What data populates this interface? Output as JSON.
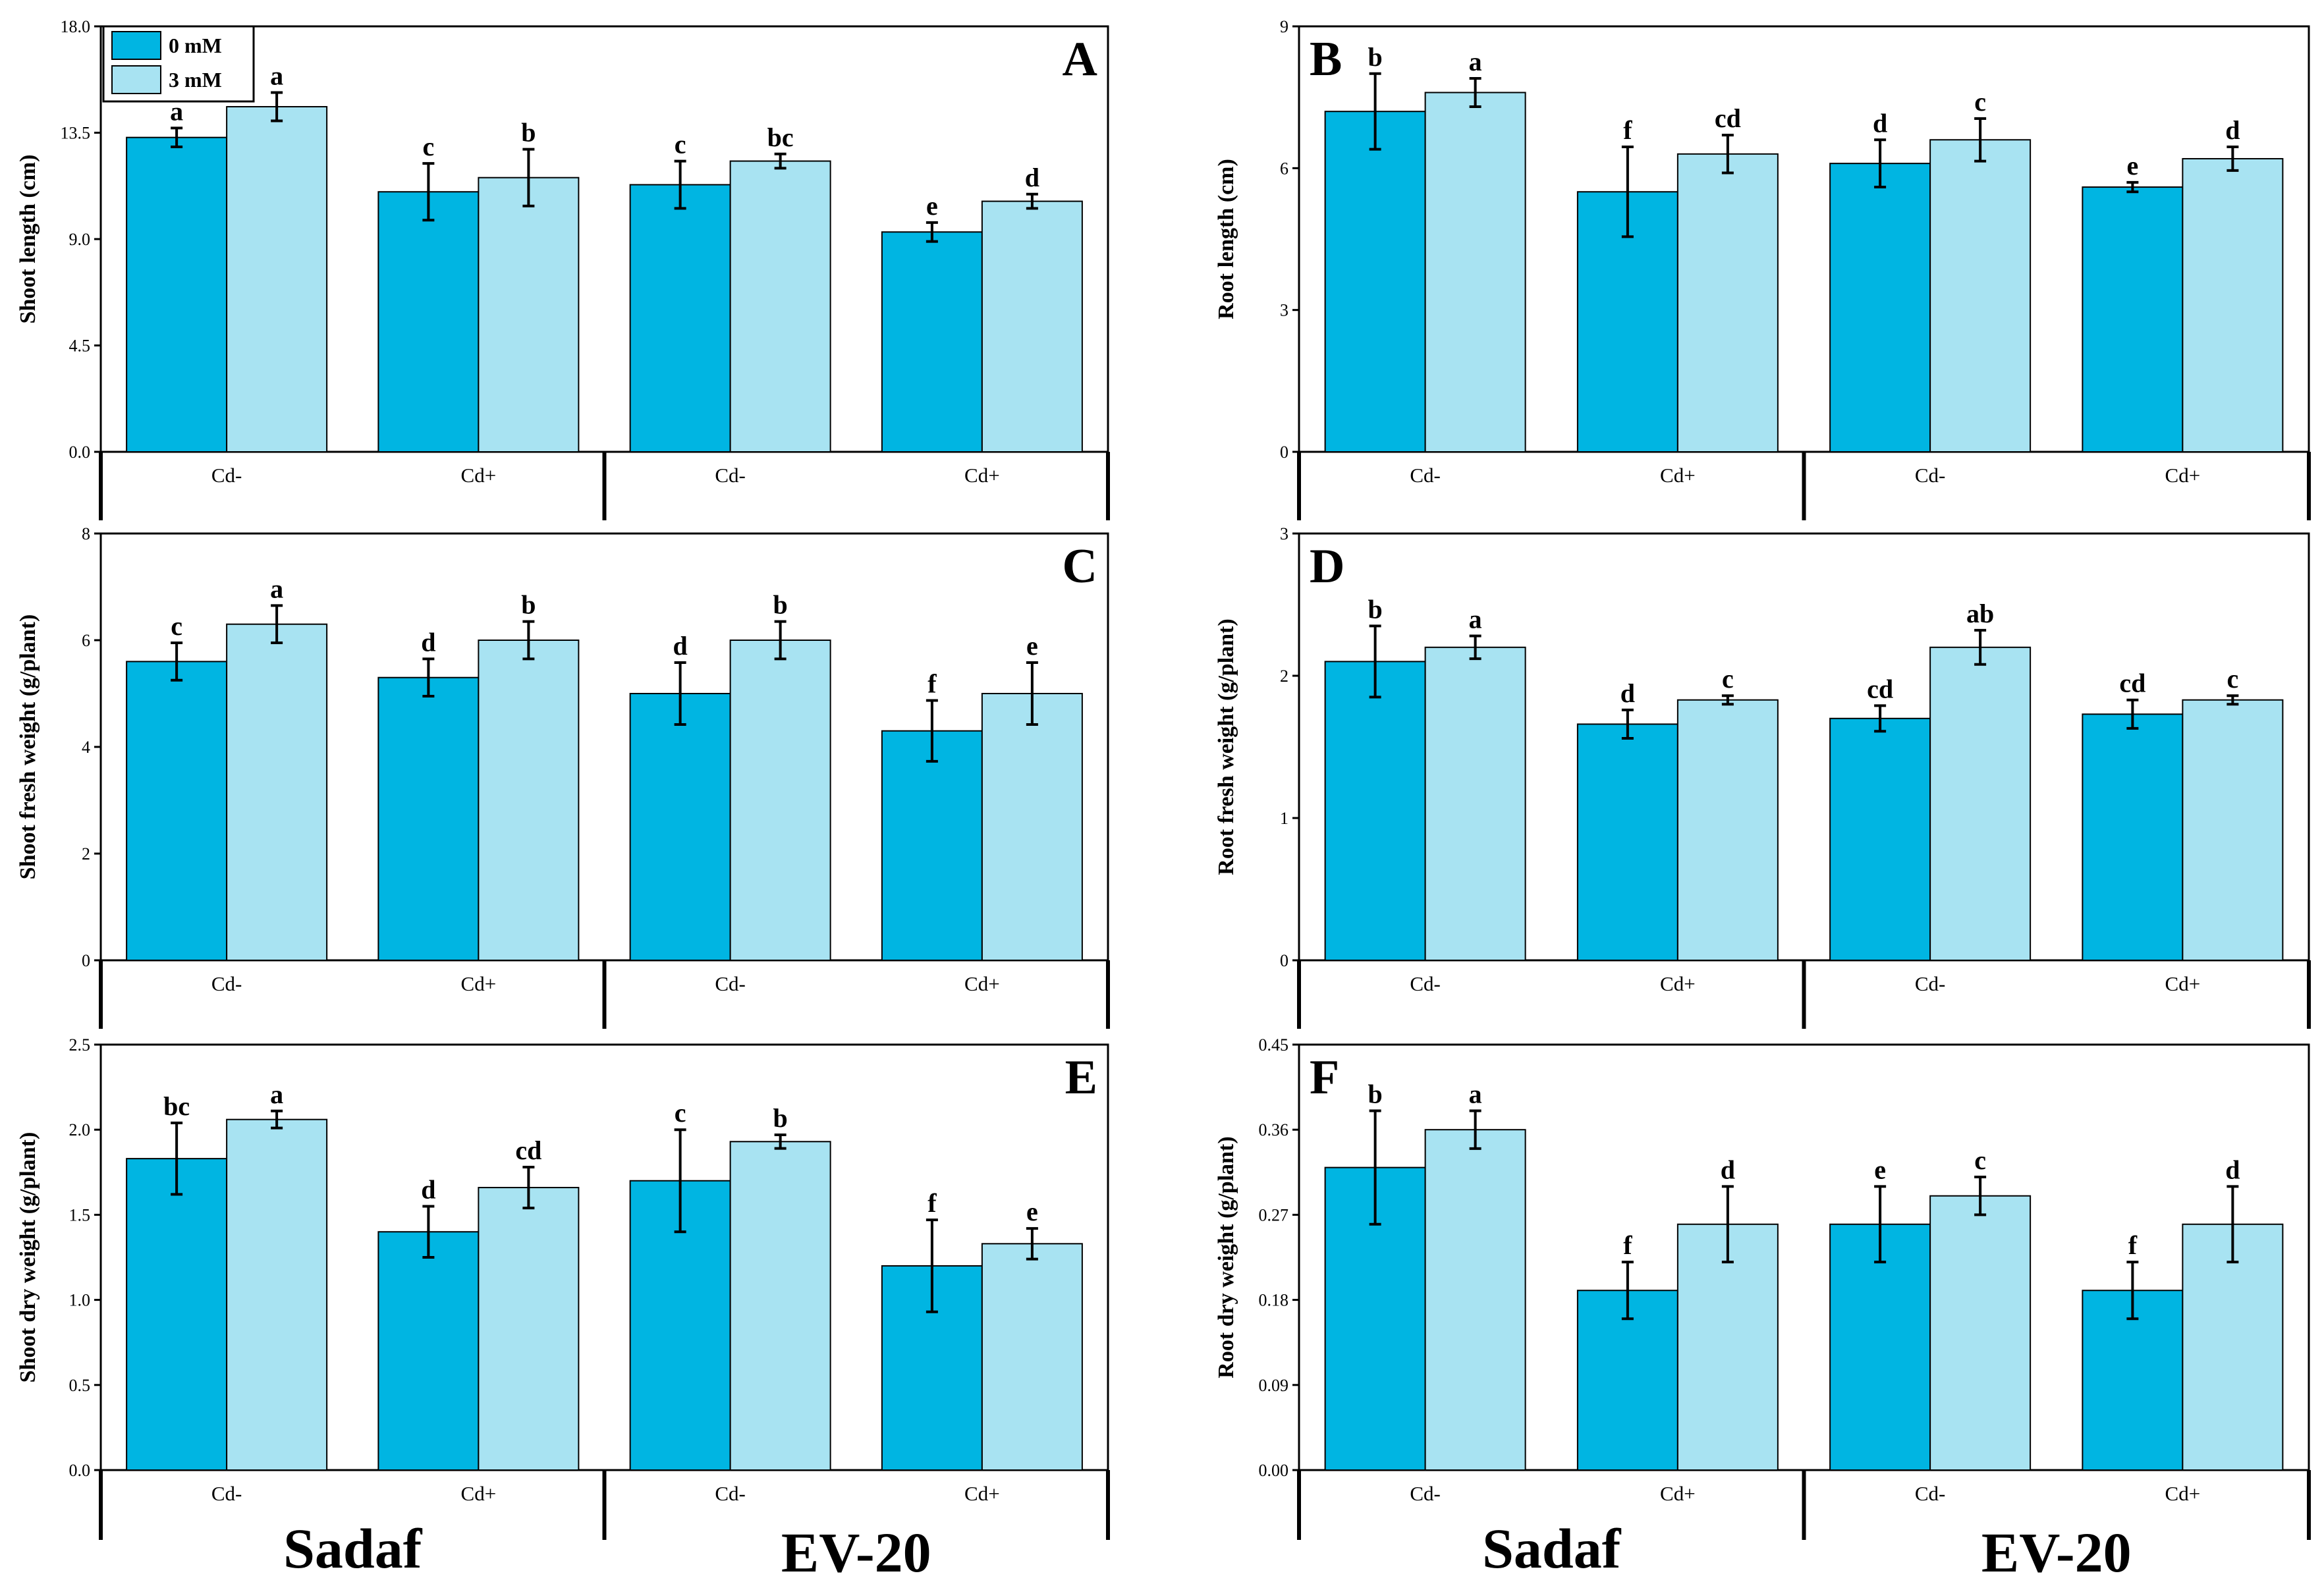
{
  "colors": {
    "c0": "#00b5e2",
    "c3": "#a8e3f2",
    "axis": "#000000"
  },
  "legend": [
    {
      "label": "0 mM",
      "color": "#00b5e2"
    },
    {
      "label": "3 mM",
      "color": "#a8e3f2"
    }
  ],
  "categories": [
    "Cd-",
    "Cd+",
    "Cd-",
    "Cd+"
  ],
  "groups": [
    "Sadaf",
    "EV-20"
  ],
  "chart_data": [
    {
      "type": "bar",
      "panel": "A",
      "ylabel": "Shoot length (cm)",
      "ylim": [
        0,
        18
      ],
      "yticks": [
        "0.0",
        "4.5",
        "9.0",
        "13.5",
        "18.0"
      ],
      "categories": [
        "Cd-",
        "Cd+",
        "Cd-",
        "Cd+"
      ],
      "series": [
        {
          "name": "0 mM",
          "values": [
            13.3,
            11.0,
            11.3,
            9.3
          ],
          "errors": [
            0.4,
            1.2,
            1.0,
            0.4
          ],
          "letters": [
            "a",
            "c",
            "c",
            "e"
          ]
        },
        {
          "name": "3 mM",
          "values": [
            14.6,
            11.6,
            12.3,
            10.6
          ],
          "errors": [
            0.6,
            1.2,
            0.3,
            0.3
          ],
          "letters": [
            "a",
            "b",
            "bc",
            "d"
          ]
        }
      ]
    },
    {
      "type": "bar",
      "panel": "B",
      "ylabel": "Root length (cm)",
      "ylim": [
        0,
        9
      ],
      "yticks": [
        "0",
        "3",
        "6",
        "9"
      ],
      "categories": [
        "Cd-",
        "Cd+",
        "Cd-",
        "Cd+"
      ],
      "series": [
        {
          "name": "0 mM",
          "values": [
            7.2,
            5.5,
            6.1,
            5.6
          ],
          "errors": [
            0.8,
            0.95,
            0.5,
            0.1
          ],
          "letters": [
            "b",
            "f",
            "d",
            "e"
          ]
        },
        {
          "name": "3 mM",
          "values": [
            7.6,
            6.3,
            6.6,
            6.2
          ],
          "errors": [
            0.3,
            0.4,
            0.45,
            0.25
          ],
          "letters": [
            "a",
            "cd",
            "c",
            "d"
          ]
        }
      ]
    },
    {
      "type": "bar",
      "panel": "C",
      "ylabel": "Shoot fresh weight (g/plant)",
      "ylim": [
        0,
        8
      ],
      "yticks": [
        "0",
        "2",
        "4",
        "6",
        "8"
      ],
      "categories": [
        "Cd-",
        "Cd+",
        "Cd-",
        "Cd+"
      ],
      "series": [
        {
          "name": "0 mM",
          "values": [
            5.6,
            5.3,
            5.0,
            4.3
          ],
          "errors": [
            0.35,
            0.35,
            0.58,
            0.57
          ],
          "letters": [
            "c",
            "d",
            "d",
            "f"
          ]
        },
        {
          "name": "3 mM",
          "values": [
            6.3,
            6.0,
            6.0,
            5.0
          ],
          "errors": [
            0.35,
            0.35,
            0.35,
            0.58
          ],
          "letters": [
            "a",
            "b",
            "b",
            "e"
          ]
        }
      ]
    },
    {
      "type": "bar",
      "panel": "D",
      "ylabel": "Root fresh weight (g/plant)",
      "ylim": [
        0,
        3
      ],
      "yticks": [
        "0",
        "1",
        "2",
        "3"
      ],
      "categories": [
        "Cd-",
        "Cd+",
        "Cd-",
        "Cd+"
      ],
      "series": [
        {
          "name": "0 mM",
          "values": [
            2.1,
            1.66,
            1.7,
            1.73
          ],
          "errors": [
            0.25,
            0.1,
            0.09,
            0.1
          ],
          "letters": [
            "b",
            "d",
            "cd",
            "cd"
          ]
        },
        {
          "name": "3 mM",
          "values": [
            2.2,
            1.83,
            2.2,
            1.83
          ],
          "errors": [
            0.08,
            0.03,
            0.12,
            0.03
          ],
          "letters": [
            "a",
            "c",
            "ab",
            "c"
          ]
        }
      ]
    },
    {
      "type": "bar",
      "panel": "E",
      "ylabel": "Shoot dry weight (g/plant)",
      "ylim": [
        0,
        2.5
      ],
      "yticks": [
        "0.0",
        "0.5",
        "1.0",
        "1.5",
        "2.0",
        "2.5"
      ],
      "categories": [
        "Cd-",
        "Cd+",
        "Cd-",
        "Cd+"
      ],
      "series": [
        {
          "name": "0 mM",
          "values": [
            1.83,
            1.4,
            1.7,
            1.2
          ],
          "errors": [
            0.21,
            0.15,
            0.3,
            0.27
          ],
          "letters": [
            "bc",
            "d",
            "c",
            "f"
          ]
        },
        {
          "name": "3 mM",
          "values": [
            2.06,
            1.66,
            1.93,
            1.33
          ],
          "errors": [
            0.05,
            0.12,
            0.04,
            0.09
          ],
          "letters": [
            "a",
            "cd",
            "b",
            "e"
          ]
        }
      ]
    },
    {
      "type": "bar",
      "panel": "F",
      "ylabel": "Root dry weight (g/plant)",
      "ylim": [
        0,
        0.45
      ],
      "yticks": [
        "0.00",
        "0.09",
        "0.18",
        "0.27",
        "0.36",
        "0.45"
      ],
      "categories": [
        "Cd-",
        "Cd+",
        "Cd-",
        "Cd+"
      ],
      "series": [
        {
          "name": "0 mM",
          "values": [
            0.32,
            0.19,
            0.26,
            0.19
          ],
          "errors": [
            0.06,
            0.03,
            0.04,
            0.03
          ],
          "letters": [
            "b",
            "f",
            "e",
            "f"
          ]
        },
        {
          "name": "3 mM",
          "values": [
            0.36,
            0.26,
            0.29,
            0.26
          ],
          "errors": [
            0.02,
            0.04,
            0.02,
            0.04
          ],
          "letters": [
            "a",
            "d",
            "c",
            "d"
          ]
        }
      ]
    }
  ]
}
